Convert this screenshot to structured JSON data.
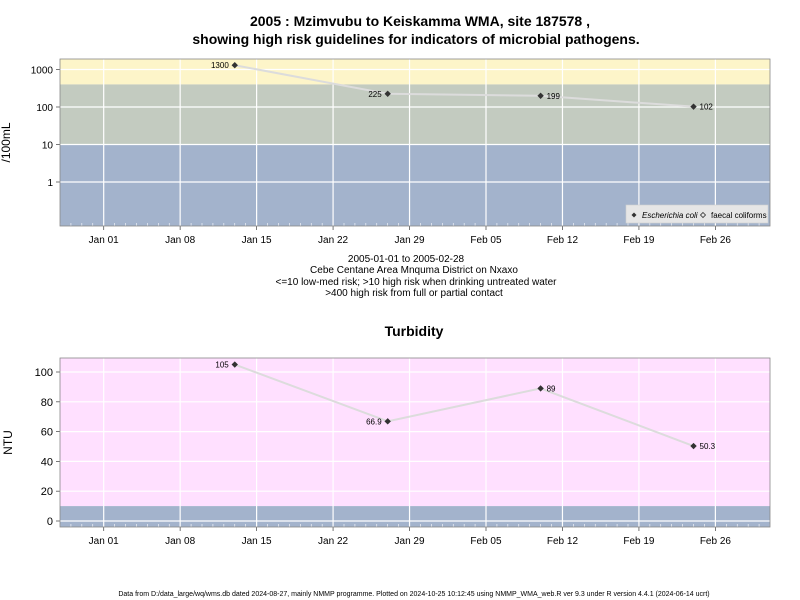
{
  "header": {
    "title_line1": "2005 : Mzimvubu to Keiskamma WMA, site 187578 ,",
    "title_line2": "showing high risk guidelines for indicators of microbial pathogens."
  },
  "info": {
    "line1": "2005-01-01 to 2005-02-28",
    "line2": "Cebe Centane Area Mnquma District on Nxaxo",
    "line3": "<=10 low-med risk; >10 high risk when drinking untreated water",
    "line4": ">400 high risk from full or partial contact"
  },
  "footer": {
    "text": "Data from D:/data_large/wq/wms.db dated 2024-08-27, mainly NMMP programme. Plotted on 2024-10-25 10:12:45 using NMMP_WMA_web.R ver 9.3 under R version 4.4.1 (2024-06-14 ucrt)"
  },
  "colors": {
    "band_yellow": "#fdf5c9",
    "band_grey": "#c3cbc0",
    "band_blue": "#a3b3cc",
    "band_pink": "#ffe0ff",
    "grid": "#ffffff",
    "line": "#dcdcdc",
    "marker": "#333333"
  },
  "chart_data": [
    {
      "type": "line",
      "title": "",
      "ylabel": "/100mL",
      "yscale": "log",
      "ytick_labels": [
        "1",
        "10",
        "100",
        "1000"
      ],
      "xtick_labels": [
        "Jan 01",
        "Jan 08",
        "Jan 15",
        "Jan 22",
        "Jan 29",
        "Feb 05",
        "Feb 12",
        "Feb 19",
        "Feb 26"
      ],
      "xtick_dates": [
        "2005-01-01",
        "2005-01-08",
        "2005-01-15",
        "2005-01-22",
        "2005-01-29",
        "2005-02-05",
        "2005-02-12",
        "2005-02-19",
        "2005-02-26"
      ],
      "risk_thresholds": [
        10,
        400
      ],
      "grid": true,
      "legend_position": "bottom-right",
      "series": [
        {
          "name": "Escherichia coli",
          "x": [
            "2005-01-13",
            "2005-01-27",
            "2005-02-10",
            "2005-02-24"
          ],
          "values": [
            1300,
            225,
            199,
            102
          ],
          "labels": [
            "1300",
            "225",
            "199",
            "102"
          ]
        },
        {
          "name": "faecal coliforms",
          "x": [],
          "values": [],
          "labels": []
        }
      ]
    },
    {
      "type": "line",
      "title": "Turbidity",
      "ylabel": "NTU",
      "yscale": "linear",
      "ytick_labels": [
        "0",
        "20",
        "40",
        "60",
        "80",
        "100"
      ],
      "xtick_labels": [
        "Jan 01",
        "Jan 08",
        "Jan 15",
        "Jan 22",
        "Jan 29",
        "Feb 05",
        "Feb 12",
        "Feb 19",
        "Feb 26"
      ],
      "xtick_dates": [
        "2005-01-01",
        "2005-01-08",
        "2005-01-15",
        "2005-01-22",
        "2005-01-29",
        "2005-02-05",
        "2005-02-12",
        "2005-02-19",
        "2005-02-26"
      ],
      "grid": true,
      "series": [
        {
          "x": [
            "2005-01-13",
            "2005-01-27",
            "2005-02-10",
            "2005-02-24"
          ],
          "values": [
            105,
            66.9,
            89,
            50.3
          ],
          "labels": [
            "105",
            "66.9",
            "89",
            "50.3"
          ]
        }
      ]
    }
  ]
}
